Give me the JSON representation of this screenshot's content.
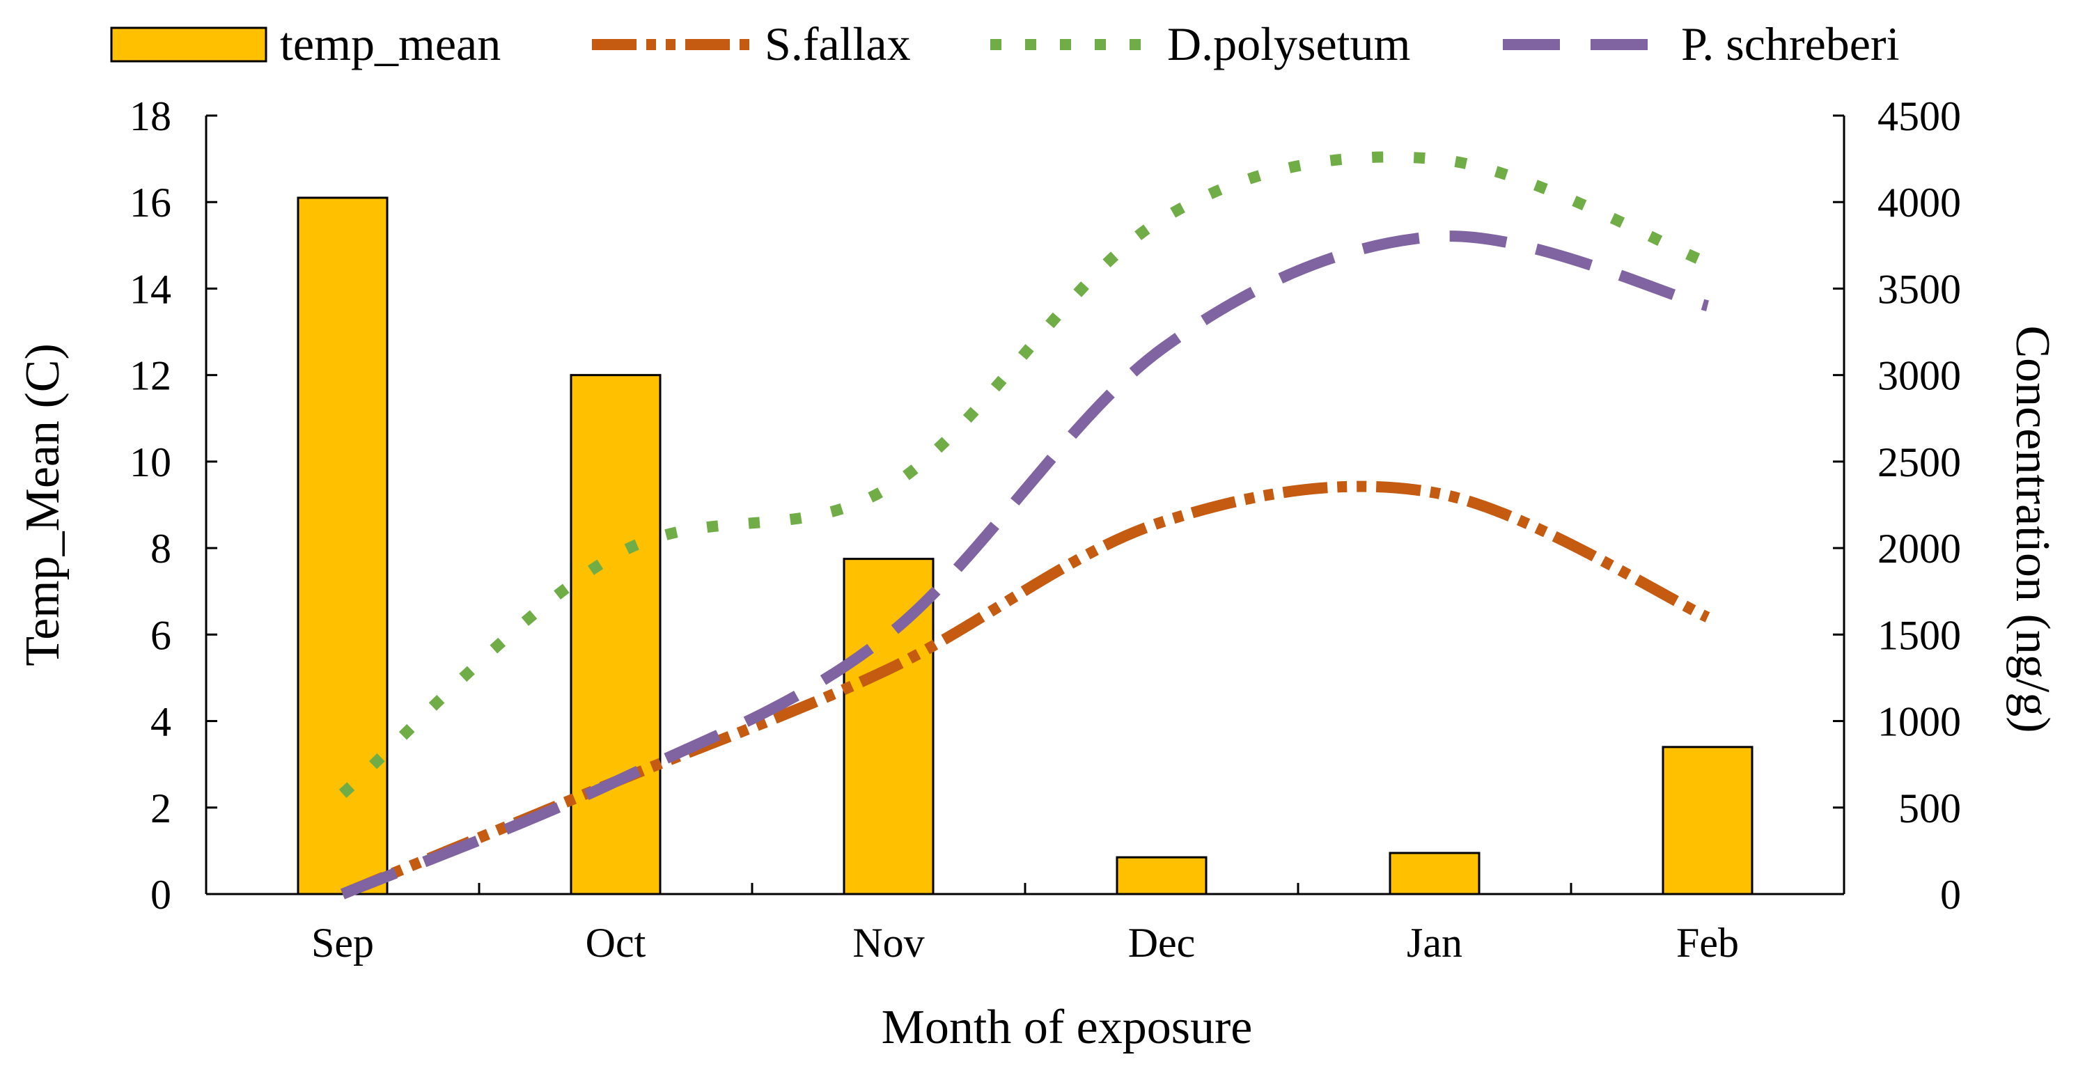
{
  "chart_data": {
    "type": "bar+line",
    "categories": [
      "Sep",
      "Oct",
      "Nov",
      "Dec",
      "Jan",
      "Feb"
    ],
    "xlabel": "Month of exposure",
    "ylabel_left": "Temp_Mean (C)",
    "ylabel_right": "Concentration (ng/g)",
    "ylim_left": [
      0,
      18
    ],
    "ylim_right": [
      0,
      4500
    ],
    "yticks_left": [
      0,
      2,
      4,
      6,
      8,
      10,
      12,
      14,
      16,
      18
    ],
    "yticks_right": [
      0,
      500,
      1000,
      1500,
      2000,
      2500,
      3000,
      3500,
      4000,
      4500
    ],
    "grid": false,
    "legend_position": "top",
    "bar_series": {
      "name": "temp_mean",
      "axis": "left",
      "color": "#FFC000",
      "values": [
        16.1,
        12.0,
        7.75,
        0.85,
        0.95,
        3.4
      ]
    },
    "line_series": [
      {
        "name": "S.fallax",
        "axis": "right",
        "color": "#C55A11",
        "style": "dash-dot-dot",
        "values": [
          0,
          650,
          1300,
          2150,
          2320,
          1600
        ]
      },
      {
        "name": "D.polysetum",
        "axis": "right",
        "color": "#70AD47",
        "style": "dotted",
        "values": [
          580,
          1960,
          2350,
          3900,
          4250,
          3650
        ]
      },
      {
        "name": "P. schreberi",
        "axis": "right",
        "color": "#8064A2",
        "style": "dashed",
        "values": [
          0,
          650,
          1500,
          3150,
          3800,
          3400
        ]
      }
    ]
  }
}
